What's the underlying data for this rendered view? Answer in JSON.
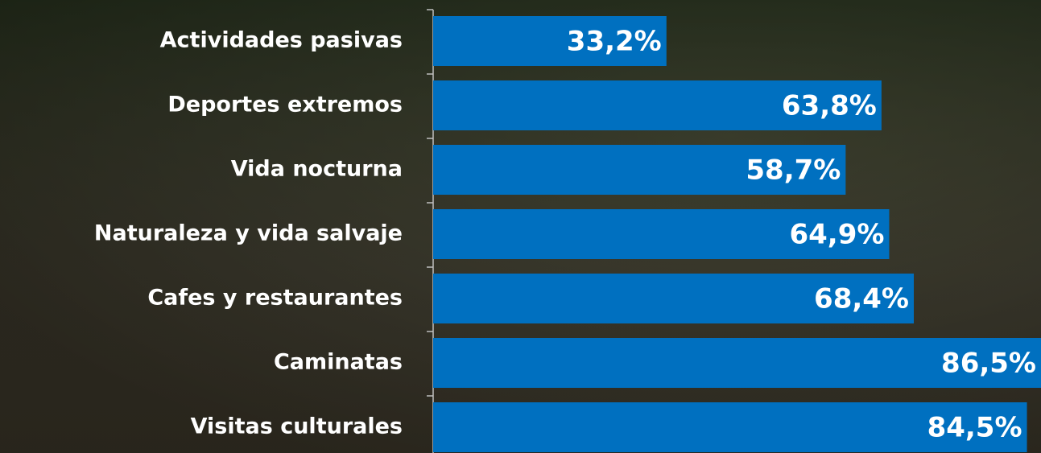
{
  "chart_data": {
    "type": "hbar",
    "categories": [
      "Actividades pasivas",
      "Deportes extremos",
      "Vida nocturna",
      "Naturaleza y vida salvaje",
      "Cafes y restaurantes",
      "Caminatas",
      "Visitas culturales"
    ],
    "values": [
      33.2,
      63.8,
      58.7,
      64.9,
      68.4,
      86.5,
      84.5
    ],
    "value_labels": [
      "33,2%",
      "63,8%",
      "58,7%",
      "64,9%",
      "68,4%",
      "86,5%",
      "84,5%"
    ],
    "color": "#0070c0",
    "xlim": [
      0,
      86.5
    ]
  }
}
